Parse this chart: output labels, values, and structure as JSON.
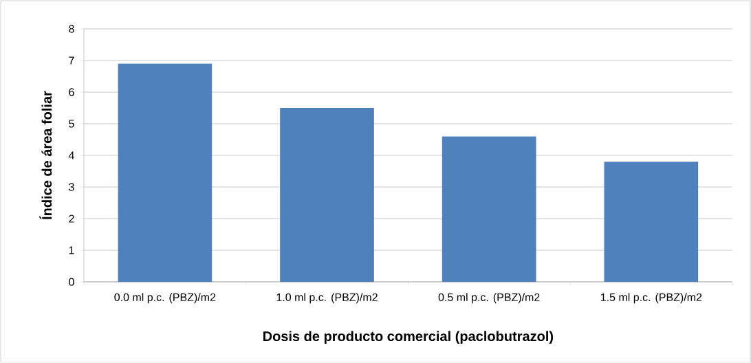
{
  "chart_data": {
    "type": "bar",
    "xlabel": "Dosis de producto comercial (paclobutrazol)",
    "ylabel": "Índice de área foliar",
    "categories": [
      "0.0 ml p.c. (PBZ)/m2",
      "1.0 ml p.c. (PBZ)/m2",
      "0.5 ml p.c. (PBZ)/m2",
      "1.5 ml p.c. (PBZ)/m2"
    ],
    "values": [
      6.9,
      5.5,
      4.6,
      3.8
    ],
    "color": "#4f81bd",
    "ylim": [
      0,
      8
    ],
    "yticks": [
      0,
      1,
      2,
      3,
      4,
      5,
      6,
      7,
      8
    ],
    "grid": "y"
  }
}
